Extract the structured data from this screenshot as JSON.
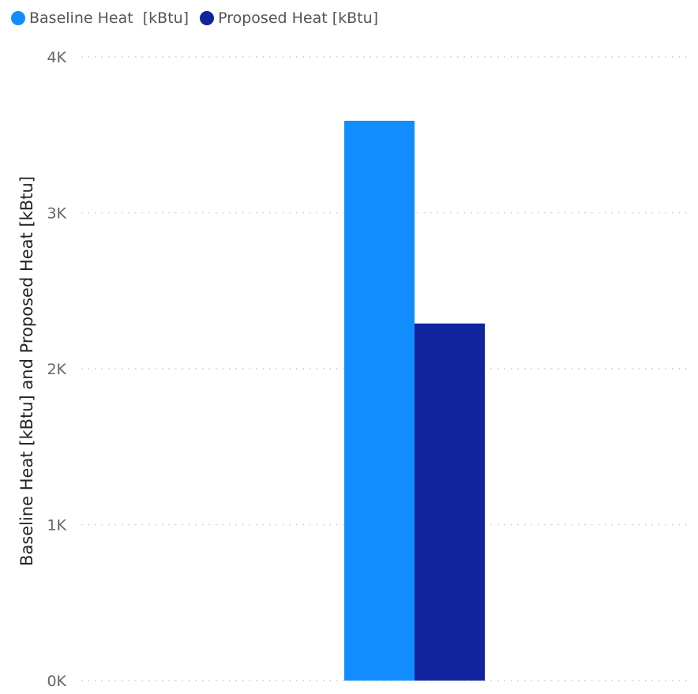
{
  "chart_data": {
    "type": "bar",
    "categories": [
      ""
    ],
    "series": [
      {
        "name": "Baseline Heat  [kBtu]",
        "values": [
          3590
        ],
        "color": "#118DFF"
      },
      {
        "name": "Proposed Heat [kBtu]",
        "values": [
          2290
        ],
        "color": "#12239E"
      }
    ],
    "ylabel": "Baseline Heat [kBtu] and Proposed Heat [kBtu]",
    "ylim": [
      0,
      4000
    ],
    "yticks": [
      0,
      1000,
      2000,
      3000,
      4000
    ],
    "ytick_labels": [
      "0K",
      "1K",
      "2K",
      "3K",
      "4K"
    ],
    "grid": true,
    "legend_position": "top-left"
  }
}
